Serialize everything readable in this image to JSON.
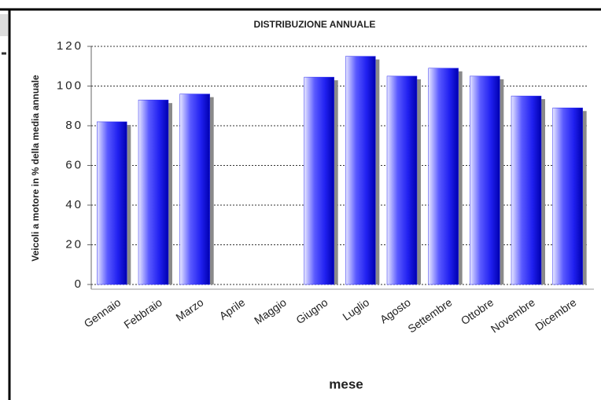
{
  "chart_data": {
    "type": "bar",
    "title": "DISTRIBUZIONE ANNUALE",
    "x_label": "mese",
    "y_label": "Veicoli a motore in % della media annuale",
    "categories": [
      "Gennaio",
      "Febbraio",
      "Marzo",
      "Aprile",
      "Maggio",
      "Giugno",
      "Luglio",
      "Agosto",
      "Settembre",
      "Ottobre",
      "Novembre",
      "Dicembre"
    ],
    "values": [
      82,
      93,
      96,
      0,
      0,
      104.5,
      115,
      105,
      109,
      105,
      95,
      89
    ],
    "color": "#2a2af0",
    "ylim": [
      0,
      120
    ],
    "yticks": [
      0,
      20,
      40,
      60,
      80,
      100,
      120
    ],
    "grid": true
  }
}
